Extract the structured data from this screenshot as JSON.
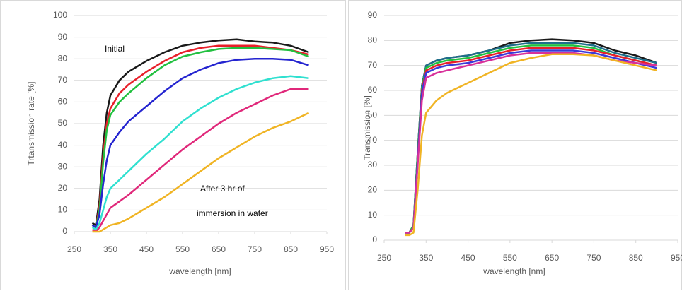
{
  "chart_data": [
    {
      "type": "line",
      "x_label": "wavelength [nm]",
      "y_label": "Trtansmission rate [%]",
      "annotations": [
        "Initial",
        "After 3 hr of",
        "immersion in water"
      ],
      "x": [
        300,
        310,
        320,
        330,
        340,
        350,
        375,
        400,
        450,
        500,
        550,
        600,
        650,
        700,
        750,
        800,
        850,
        900
      ],
      "xlim": [
        250,
        950
      ],
      "xticks": [
        250,
        350,
        450,
        550,
        650,
        750,
        850,
        950
      ],
      "ylim": [
        0,
        100
      ],
      "yticks": [
        0,
        10,
        20,
        30,
        40,
        50,
        60,
        70,
        80,
        90,
        100
      ],
      "grid": true,
      "series": [
        {
          "color": "#1a1a1a",
          "values": [
            4,
            3,
            15,
            40,
            55,
            63,
            70,
            74,
            79,
            83,
            86,
            87.5,
            88.5,
            89,
            88,
            87.5,
            86,
            83
          ]
        },
        {
          "color": "#e8202a",
          "values": [
            3,
            2,
            12,
            35,
            50,
            57,
            64,
            68,
            74,
            79,
            83,
            85,
            86,
            86,
            86,
            85,
            84,
            82
          ]
        },
        {
          "color": "#22c040",
          "values": [
            3,
            2,
            10,
            32,
            47,
            54,
            60,
            64,
            71,
            77,
            81,
            83,
            84.5,
            85,
            85,
            84.5,
            84,
            81
          ]
        },
        {
          "color": "#2424d0",
          "values": [
            3,
            2,
            8,
            22,
            33,
            40,
            46,
            51,
            58,
            65,
            71,
            75,
            78,
            79.5,
            80,
            80,
            79.5,
            77
          ]
        },
        {
          "color": "#30e0d0",
          "values": [
            2,
            1,
            4,
            10,
            16,
            20,
            24,
            28,
            36,
            43,
            51,
            57,
            62,
            66,
            69,
            71,
            72,
            71
          ]
        },
        {
          "color": "#e0287a",
          "values": [
            1,
            0,
            2,
            5,
            8,
            11,
            14,
            17,
            24,
            31,
            38,
            44,
            50,
            55,
            59,
            63,
            66,
            66
          ]
        },
        {
          "color": "#f0b424",
          "values": [
            0,
            0,
            0,
            1,
            2,
            3,
            4,
            6,
            11,
            16,
            22,
            28,
            34,
            39,
            44,
            48,
            51,
            55
          ]
        }
      ]
    },
    {
      "type": "line",
      "x_label": "wavelength [nm]",
      "y_label": "Transmission [%]",
      "x": [
        300,
        310,
        320,
        330,
        340,
        350,
        375,
        400,
        450,
        500,
        550,
        600,
        650,
        700,
        750,
        800,
        850,
        900
      ],
      "xlim": [
        250,
        950
      ],
      "xticks": [
        250,
        350,
        450,
        550,
        650,
        750,
        850,
        950
      ],
      "ylim": [
        0,
        90
      ],
      "yticks": [
        0,
        10,
        20,
        30,
        40,
        50,
        60,
        70,
        80,
        90
      ],
      "grid": true,
      "series": [
        {
          "color": "#1a1a1a",
          "values": [
            3,
            3,
            6,
            35,
            62,
            70,
            72,
            73,
            74,
            76,
            79,
            80,
            80.5,
            80,
            79,
            76,
            74,
            71
          ]
        },
        {
          "color": "#1f6f8b",
          "values": [
            3,
            3,
            6,
            35,
            62,
            70,
            72,
            73,
            74,
            76,
            78,
            79,
            79,
            79,
            78,
            75,
            73,
            71
          ]
        },
        {
          "color": "#22c040",
          "values": [
            3,
            3,
            6,
            34,
            61,
            69,
            71,
            72,
            73,
            75,
            77,
            78,
            78,
            78,
            77,
            74,
            72,
            70
          ]
        },
        {
          "color": "#e8202a",
          "values": [
            3,
            3,
            5,
            32,
            60,
            68,
            70,
            71,
            72,
            74,
            76,
            77,
            77,
            77,
            76,
            74,
            72,
            70
          ]
        },
        {
          "color": "#3a3ad8",
          "values": [
            3,
            3,
            5,
            32,
            59,
            67,
            69,
            70,
            71,
            73,
            75,
            76,
            76,
            76,
            75,
            73,
            71,
            69
          ]
        },
        {
          "color": "#d8309a",
          "values": [
            3,
            3,
            5,
            30,
            56,
            65,
            67,
            68,
            70,
            72,
            74,
            75,
            75,
            75,
            74,
            72,
            71,
            70
          ]
        },
        {
          "color": "#f0b424",
          "values": [
            2,
            2,
            3,
            20,
            42,
            51,
            56,
            59,
            63,
            67,
            71,
            73,
            74.5,
            74.5,
            74,
            72,
            70,
            68
          ]
        }
      ]
    }
  ]
}
